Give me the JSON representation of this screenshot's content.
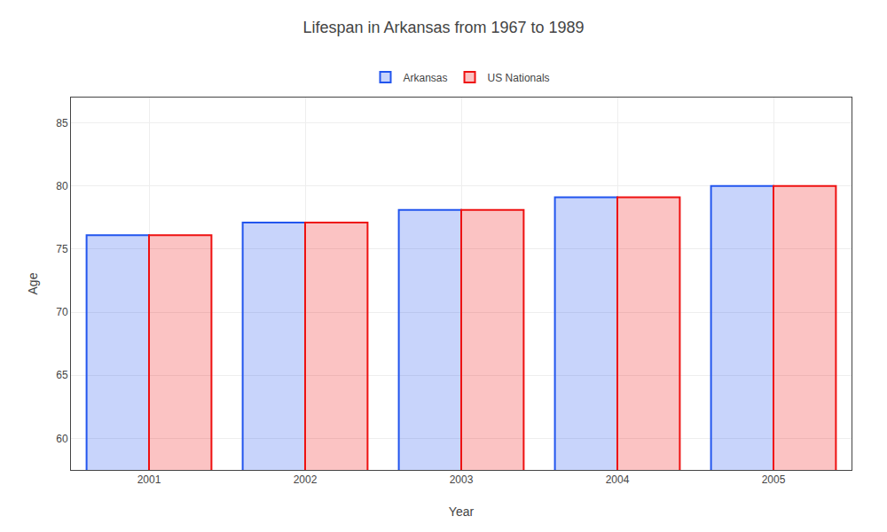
{
  "chart_data": {
    "type": "bar",
    "title": "Lifespan in Arkansas from 1967 to 1989",
    "x_label": "Year",
    "y_label": "Age",
    "categories": [
      "2001",
      "2002",
      "2003",
      "2004",
      "2005"
    ],
    "series": [
      {
        "name": "Arkansas",
        "color": "#2255ee",
        "values": [
          76.1,
          77.1,
          78.1,
          79.1,
          80.0
        ]
      },
      {
        "name": "US Nationals",
        "color": "#ee1111",
        "values": [
          76.1,
          77.1,
          78.1,
          79.1,
          80.0
        ]
      }
    ],
    "ylim": [
      57.5,
      87
    ],
    "yticks": [
      60,
      65,
      70,
      75,
      80,
      85
    ],
    "grid": true,
    "legend": "top"
  }
}
